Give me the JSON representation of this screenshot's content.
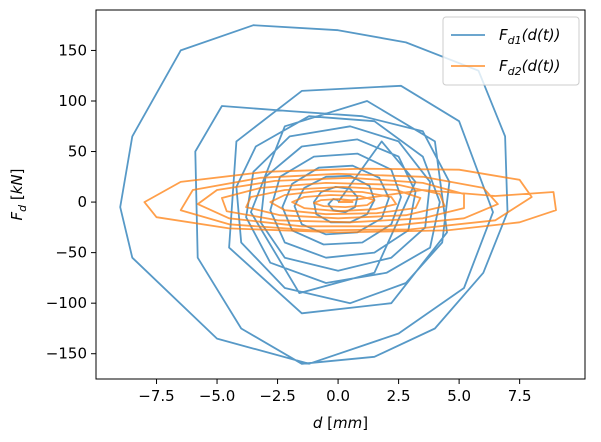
{
  "chart_data": {
    "type": "line",
    "xlabel": "d [mm]",
    "ylabel": "F_d [kN]",
    "xlim": [
      -10.0,
      10.2
    ],
    "ylim": [
      -175,
      190
    ],
    "xticks": [
      -7.5,
      -5.0,
      -2.5,
      0.0,
      2.5,
      5.0,
      7.5
    ],
    "xtick_labels": [
      "−7.5",
      "−5.0",
      "−2.5",
      "0.0",
      "2.5",
      "5.0",
      "7.5"
    ],
    "yticks": [
      -150,
      -100,
      -50,
      0,
      50,
      100,
      150
    ],
    "ytick_labels": [
      "−150",
      "−100",
      "−50",
      "0",
      "50",
      "100",
      "150"
    ],
    "grid": false,
    "legend_position": "top-right",
    "series": [
      {
        "name": "F_d1(d(t))",
        "label_main": "F",
        "label_sub": "d1",
        "label_rest": "(d(t))",
        "color": "#1f77b4",
        "points": [
          [
            0.0,
            0
          ],
          [
            1.8,
            60
          ],
          [
            3.2,
            20
          ],
          [
            1.5,
            -70
          ],
          [
            -1.6,
            -90
          ],
          [
            -3.6,
            -10
          ],
          [
            -2.2,
            75
          ],
          [
            1.2,
            100
          ],
          [
            4.0,
            60
          ],
          [
            4.5,
            -30
          ],
          [
            2.2,
            -100
          ],
          [
            -1.5,
            -110
          ],
          [
            -4.5,
            -45
          ],
          [
            -4.2,
            60
          ],
          [
            -1.5,
            110
          ],
          [
            2.6,
            115
          ],
          [
            5.0,
            80
          ],
          [
            6.4,
            -10
          ],
          [
            5.2,
            -85
          ],
          [
            2.5,
            -130
          ],
          [
            -1.2,
            -160
          ],
          [
            -5.0,
            -135
          ],
          [
            -8.5,
            -55
          ],
          [
            -9.0,
            -5
          ],
          [
            -8.5,
            65
          ],
          [
            -6.5,
            150
          ],
          [
            -3.5,
            175
          ],
          [
            0.0,
            170
          ],
          [
            2.8,
            158
          ],
          [
            5.8,
            130
          ],
          [
            6.9,
            65
          ],
          [
            7.0,
            -10
          ],
          [
            6.0,
            -70
          ],
          [
            4.0,
            -125
          ],
          [
            1.5,
            -153
          ],
          [
            -1.5,
            -160
          ],
          [
            -4.0,
            -125
          ],
          [
            -5.8,
            -55
          ],
          [
            -5.9,
            50
          ],
          [
            -4.8,
            95
          ],
          [
            -2.0,
            90
          ],
          [
            1.0,
            85
          ],
          [
            3.5,
            70
          ],
          [
            4.6,
            20
          ],
          [
            4.3,
            -40
          ],
          [
            2.8,
            -80
          ],
          [
            0.5,
            -100
          ],
          [
            -2.2,
            -85
          ],
          [
            -4.0,
            -40
          ],
          [
            -4.2,
            15
          ],
          [
            -3.4,
            55
          ],
          [
            -1.2,
            85
          ],
          [
            1.5,
            80
          ],
          [
            3.5,
            45
          ],
          [
            4.2,
            0
          ],
          [
            3.8,
            -45
          ],
          [
            2.0,
            -70
          ],
          [
            -0.5,
            -80
          ],
          [
            -2.8,
            -60
          ],
          [
            -3.8,
            -15
          ],
          [
            -3.5,
            30
          ],
          [
            -2.0,
            65
          ],
          [
            0.5,
            75
          ],
          [
            2.5,
            60
          ],
          [
            3.8,
            20
          ],
          [
            3.6,
            -25
          ],
          [
            2.2,
            -55
          ],
          [
            0.0,
            -68
          ],
          [
            -2.2,
            -55
          ],
          [
            -3.2,
            -20
          ],
          [
            -3.0,
            25
          ],
          [
            -1.5,
            55
          ],
          [
            0.8,
            62
          ],
          [
            2.5,
            45
          ],
          [
            3.2,
            10
          ],
          [
            2.9,
            -28
          ],
          [
            1.5,
            -50
          ],
          [
            -0.5,
            -55
          ],
          [
            -2.2,
            -40
          ],
          [
            -2.8,
            -8
          ],
          [
            -2.4,
            25
          ],
          [
            -1.0,
            45
          ],
          [
            0.8,
            48
          ],
          [
            2.2,
            32
          ],
          [
            2.6,
            5
          ],
          [
            2.2,
            -22
          ],
          [
            1.0,
            -40
          ],
          [
            -0.6,
            -42
          ],
          [
            -1.9,
            -28
          ],
          [
            -2.3,
            -5
          ],
          [
            -1.9,
            18
          ],
          [
            -0.8,
            34
          ],
          [
            0.6,
            36
          ],
          [
            1.7,
            24
          ],
          [
            2.1,
            4
          ],
          [
            1.8,
            -16
          ],
          [
            0.8,
            -30
          ],
          [
            -0.5,
            -32
          ],
          [
            -1.5,
            -22
          ],
          [
            -1.8,
            -4
          ],
          [
            -1.4,
            14
          ],
          [
            -0.5,
            25
          ],
          [
            0.5,
            26
          ],
          [
            1.3,
            16
          ],
          [
            1.5,
            2
          ],
          [
            1.2,
            -12
          ],
          [
            0.5,
            -20
          ],
          [
            -0.3,
            -20
          ],
          [
            -0.9,
            -12
          ],
          [
            -1.0,
            0
          ],
          [
            -0.7,
            10
          ],
          [
            -0.1,
            15
          ],
          [
            0.5,
            13
          ],
          [
            0.8,
            5
          ],
          [
            0.7,
            -5
          ],
          [
            0.3,
            -10
          ],
          [
            -0.2,
            -8
          ],
          [
            -0.4,
            -2
          ],
          [
            -0.2,
            3
          ],
          [
            0.0,
            2
          ]
        ]
      },
      {
        "name": "F_d2(d(t))",
        "label_main": "F",
        "label_sub": "d2",
        "label_rest": "(d(t))",
        "color": "#ff7f0e",
        "points": [
          [
            0.0,
            0
          ],
          [
            3.5,
            12
          ],
          [
            6.5,
            6
          ],
          [
            8.9,
            10
          ],
          [
            9.0,
            -8
          ],
          [
            7.5,
            -20
          ],
          [
            4.5,
            -28
          ],
          [
            0.0,
            -30
          ],
          [
            -4.5,
            -26
          ],
          [
            -7.5,
            -15
          ],
          [
            -8.0,
            0
          ],
          [
            -6.5,
            20
          ],
          [
            -3.0,
            30
          ],
          [
            1.0,
            33
          ],
          [
            5.0,
            32
          ],
          [
            7.5,
            22
          ],
          [
            8.0,
            5
          ],
          [
            6.5,
            -18
          ],
          [
            3.0,
            -27
          ],
          [
            -1.0,
            -28
          ],
          [
            -4.5,
            -22
          ],
          [
            -6.5,
            -8
          ],
          [
            -6.0,
            12
          ],
          [
            -3.2,
            24
          ],
          [
            0.0,
            28
          ],
          [
            3.5,
            25
          ],
          [
            6.0,
            14
          ],
          [
            6.6,
            -2
          ],
          [
            5.2,
            -16
          ],
          [
            2.0,
            -24
          ],
          [
            -1.5,
            -24
          ],
          [
            -4.5,
            -16
          ],
          [
            -5.8,
            -2
          ],
          [
            -5.0,
            12
          ],
          [
            -2.6,
            21
          ],
          [
            0.5,
            24
          ],
          [
            3.5,
            19
          ],
          [
            5.2,
            8
          ],
          [
            5.2,
            -6
          ],
          [
            3.5,
            -16
          ],
          [
            0.5,
            -20
          ],
          [
            -2.5,
            -18
          ],
          [
            -4.6,
            -9
          ],
          [
            -4.8,
            4
          ],
          [
            -3.2,
            14
          ],
          [
            -0.5,
            19
          ],
          [
            2.5,
            17
          ],
          [
            4.2,
            8
          ],
          [
            4.4,
            -4
          ],
          [
            2.8,
            -13
          ],
          [
            0.0,
            -16
          ],
          [
            -2.4,
            -13
          ],
          [
            -3.8,
            -5
          ],
          [
            -3.6,
            5
          ],
          [
            -2.2,
            12
          ],
          [
            0.2,
            15
          ],
          [
            2.4,
            12
          ],
          [
            3.4,
            4
          ],
          [
            3.2,
            -6
          ],
          [
            1.6,
            -11
          ],
          [
            -0.5,
            -12
          ],
          [
            -2.2,
            -8
          ],
          [
            -2.8,
            0
          ],
          [
            -2.2,
            7
          ],
          [
            -0.8,
            11
          ],
          [
            1.0,
            10
          ],
          [
            2.2,
            5
          ],
          [
            2.4,
            -2
          ],
          [
            1.5,
            -7
          ],
          [
            0.0,
            -9
          ],
          [
            -1.4,
            -6
          ],
          [
            -1.9,
            0
          ],
          [
            -1.4,
            5
          ],
          [
            -0.3,
            7
          ],
          [
            0.9,
            6
          ],
          [
            1.5,
            2
          ],
          [
            1.2,
            -3
          ],
          [
            0.3,
            -5
          ],
          [
            -0.6,
            -4
          ],
          [
            -1.0,
            -1
          ],
          [
            -0.7,
            2
          ],
          [
            0.0,
            3
          ],
          [
            0.5,
            2
          ],
          [
            0.6,
            0
          ],
          [
            0.0,
            0
          ]
        ]
      }
    ]
  }
}
